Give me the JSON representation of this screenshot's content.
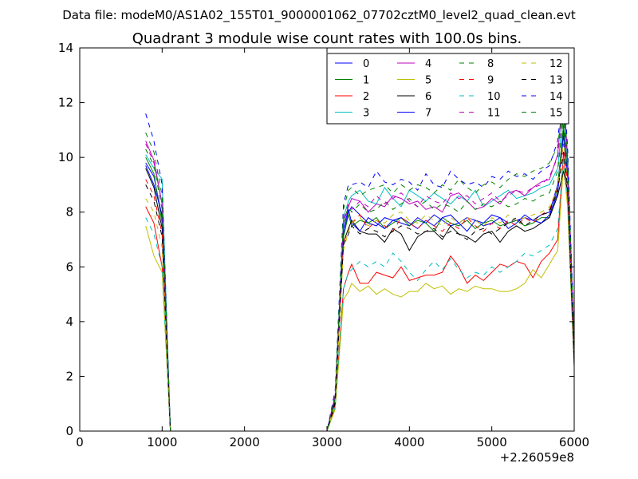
{
  "suptitle": "Data file: modeM0/AS1A02_155T01_9000001062_07702cztM0_level2_quad_clean.evt",
  "chart_data": {
    "type": "line",
    "title": "Quadrant 3 module wise count rates with 100.0s bins.",
    "xlabel": "",
    "ylabel": "",
    "x_offset_label": "+2.26059e8",
    "xlim": [
      0,
      6000
    ],
    "ylim": [
      0,
      14
    ],
    "xticks": [
      0,
      1000,
      2000,
      3000,
      4000,
      5000,
      6000
    ],
    "yticks": [
      0,
      2,
      4,
      6,
      8,
      10,
      12,
      14
    ],
    "grid": false,
    "legend": {
      "position": "top-right",
      "columns": 4
    },
    "x": [
      800,
      900,
      1000,
      1100,
      1200,
      1300,
      1400,
      1500,
      1600,
      1700,
      1800,
      1900,
      2000,
      2100,
      2200,
      2300,
      2400,
      2500,
      2600,
      2700,
      2800,
      2900,
      3000,
      3100,
      3200,
      3260,
      3300,
      3400,
      3500,
      3600,
      3700,
      3800,
      3900,
      4000,
      4100,
      4200,
      4300,
      4400,
      4500,
      4600,
      4700,
      4800,
      4900,
      5000,
      5100,
      5200,
      5300,
      5400,
      5500,
      5600,
      5700,
      5800,
      5870,
      5920,
      6000
    ],
    "series": [
      {
        "name": "0",
        "color": "#0000ff",
        "dash": false,
        "values": [
          9.8,
          9.3,
          7.8,
          0,
          0,
          0,
          0,
          0,
          0,
          0,
          0,
          0,
          0,
          0,
          0,
          0,
          0,
          0,
          0,
          0,
          0,
          0,
          0,
          1.2,
          7.2,
          8.0,
          8.2,
          7.9,
          7.6,
          7.5,
          7.8,
          7.7,
          7.6,
          7.5,
          7.8,
          7.6,
          7.9,
          7.7,
          7.5,
          7.6,
          7.8,
          7.7,
          7.6,
          7.9,
          7.8,
          7.6,
          7.7,
          7.8,
          7.7,
          7.9,
          8.0,
          9.0,
          11.0,
          9.5,
          3.0
        ]
      },
      {
        "name": "1",
        "color": "#008000",
        "dash": false,
        "values": [
          10.0,
          9.4,
          7.6,
          0,
          0,
          0,
          0,
          0,
          0,
          0,
          0,
          0,
          0,
          0,
          0,
          0,
          0,
          0,
          0,
          0,
          0,
          0,
          0,
          1.1,
          7.1,
          7.9,
          7.5,
          7.7,
          7.6,
          7.8,
          7.4,
          7.6,
          7.8,
          7.5,
          7.7,
          7.6,
          7.3,
          7.8,
          7.6,
          7.5,
          7.7,
          7.4,
          7.6,
          7.7,
          7.5,
          7.6,
          7.7,
          7.5,
          7.6,
          7.8,
          7.8,
          8.9,
          11.2,
          9.4,
          2.8
        ]
      },
      {
        "name": "2",
        "color": "#ff0000",
        "dash": false,
        "values": [
          8.2,
          7.6,
          6.0,
          0,
          0,
          0,
          0,
          0,
          0,
          0,
          0,
          0,
          0,
          0,
          0,
          0,
          0,
          0,
          0,
          0,
          0,
          0,
          0,
          0.9,
          5.2,
          5.8,
          6.1,
          5.4,
          5.4,
          5.8,
          5.7,
          5.6,
          6.0,
          5.5,
          5.6,
          5.7,
          5.7,
          5.8,
          6.4,
          6.0,
          5.4,
          5.7,
          5.5,
          5.8,
          6.1,
          6.0,
          6.2,
          6.1,
          5.6,
          6.2,
          6.5,
          7.0,
          10.2,
          8.5,
          2.5
        ]
      },
      {
        "name": "3",
        "color": "#00bfbf",
        "dash": false,
        "values": [
          10.1,
          9.6,
          9.2,
          0,
          0,
          0,
          0,
          0,
          0,
          0,
          0,
          0,
          0,
          0,
          0,
          0,
          0,
          0,
          0,
          0,
          0,
          0,
          0,
          1.3,
          7.8,
          8.4,
          8.6,
          8.8,
          8.4,
          8.3,
          8.9,
          8.5,
          8.2,
          8.8,
          8.6,
          8.4,
          8.7,
          8.5,
          8.3,
          8.6,
          8.4,
          8.8,
          8.2,
          8.4,
          8.6,
          8.8,
          8.5,
          8.6,
          8.7,
          8.9,
          9.0,
          9.6,
          11.8,
          9.8,
          3.1
        ]
      },
      {
        "name": "4",
        "color": "#bf00bf",
        "dash": false,
        "values": [
          10.6,
          9.9,
          8.3,
          0,
          0,
          0,
          0,
          0,
          0,
          0,
          0,
          0,
          0,
          0,
          0,
          0,
          0,
          0,
          0,
          0,
          0,
          0,
          0,
          1.3,
          7.6,
          8.2,
          8.5,
          8.4,
          8.0,
          8.3,
          8.2,
          8.6,
          8.5,
          8.3,
          8.4,
          8.1,
          8.2,
          8.0,
          8.6,
          8.7,
          8.4,
          8.1,
          8.2,
          8.5,
          8.3,
          8.7,
          8.8,
          8.6,
          8.9,
          9.1,
          9.2,
          10.1,
          12.5,
          10.0,
          3.2
        ]
      },
      {
        "name": "5",
        "color": "#bfbf00",
        "dash": false,
        "values": [
          7.5,
          6.4,
          5.8,
          0,
          0,
          0,
          0,
          0,
          0,
          0,
          0,
          0,
          0,
          0,
          0,
          0,
          0,
          0,
          0,
          0,
          0,
          0,
          0,
          0.8,
          4.8,
          5.1,
          5.4,
          5.1,
          5.3,
          5.0,
          5.2,
          5.0,
          4.9,
          5.1,
          5.1,
          5.4,
          5.2,
          5.3,
          5.0,
          5.2,
          5.1,
          5.3,
          5.2,
          5.2,
          5.1,
          5.1,
          5.2,
          5.4,
          5.9,
          5.6,
          6.1,
          6.6,
          9.7,
          8.2,
          2.3
        ]
      },
      {
        "name": "6",
        "color": "#000000",
        "dash": false,
        "values": [
          9.6,
          8.9,
          7.4,
          0,
          0,
          0,
          0,
          0,
          0,
          0,
          0,
          0,
          0,
          0,
          0,
          0,
          0,
          0,
          0,
          0,
          0,
          0,
          0,
          1.1,
          6.9,
          7.4,
          7.7,
          7.3,
          7.2,
          7.2,
          6.9,
          7.4,
          7.2,
          6.6,
          7.1,
          7.3,
          7.3,
          7.0,
          7.5,
          7.2,
          7.1,
          6.9,
          7.2,
          7.3,
          6.9,
          7.3,
          7.5,
          7.3,
          7.4,
          7.6,
          7.8,
          8.6,
          9.5,
          8.8,
          2.4
        ]
      },
      {
        "name": "7",
        "color": "#0000ff",
        "dash": false,
        "values": [
          9.7,
          9.0,
          7.9,
          0,
          0,
          0,
          0,
          0,
          0,
          0,
          0,
          0,
          0,
          0,
          0,
          0,
          0,
          0,
          0,
          0,
          0,
          0,
          0,
          1.2,
          7.4,
          8.1,
          7.6,
          7.3,
          7.8,
          7.6,
          7.4,
          7.7,
          7.8,
          7.6,
          7.4,
          7.7,
          7.5,
          7.8,
          7.9,
          7.6,
          7.3,
          7.7,
          7.5,
          7.6,
          7.8,
          7.4,
          7.6,
          7.9,
          7.7,
          7.6,
          7.9,
          8.7,
          10.8,
          9.3,
          2.6
        ]
      },
      {
        "name": "8",
        "color": "#008000",
        "dash": true,
        "values": [
          10.3,
          9.7,
          8.1,
          0,
          0,
          0,
          0,
          0,
          0,
          0,
          0,
          0,
          0,
          0,
          0,
          0,
          0,
          0,
          0,
          0,
          0,
          0,
          0,
          1.2,
          7.6,
          8.2,
          8.0,
          8.3,
          8.0,
          8.1,
          8.4,
          8.1,
          8.3,
          8.5,
          8.2,
          8.4,
          8.1,
          8.3,
          8.2,
          8.0,
          8.4,
          8.1,
          8.3,
          8.2,
          8.4,
          8.2,
          8.3,
          8.5,
          8.4,
          8.6,
          8.7,
          9.5,
          11.5,
          9.6,
          2.9
        ]
      },
      {
        "name": "9",
        "color": "#ff0000",
        "dash": true,
        "values": [
          9.2,
          8.6,
          7.2,
          0,
          0,
          0,
          0,
          0,
          0,
          0,
          0,
          0,
          0,
          0,
          0,
          0,
          0,
          0,
          0,
          0,
          0,
          0,
          0,
          1.0,
          6.9,
          7.3,
          7.6,
          7.9,
          7.4,
          7.7,
          7.5,
          7.3,
          7.8,
          7.6,
          7.4,
          7.7,
          7.5,
          7.3,
          7.6,
          7.4,
          7.8,
          7.5,
          7.3,
          7.6,
          7.4,
          7.7,
          7.5,
          7.8,
          7.6,
          7.9,
          8.1,
          8.9,
          10.5,
          9.0,
          2.7
        ]
      },
      {
        "name": "10",
        "color": "#00bfbf",
        "dash": true,
        "values": [
          7.8,
          7.2,
          6.0,
          0,
          0,
          0,
          0,
          0,
          0,
          0,
          0,
          0,
          0,
          0,
          0,
          0,
          0,
          0,
          0,
          0,
          0,
          0,
          0,
          0.9,
          5.2,
          5.8,
          5.9,
          6.2,
          6.0,
          6.2,
          6.0,
          6.5,
          6.2,
          5.8,
          5.5,
          5.9,
          6.2,
          5.9,
          6.3,
          5.9,
          5.6,
          5.8,
          5.7,
          6.0,
          5.8,
          6.0,
          6.2,
          6.5,
          6.4,
          6.6,
          6.8,
          7.4,
          10.0,
          8.5,
          2.4
        ]
      },
      {
        "name": "11",
        "color": "#bf00bf",
        "dash": true,
        "values": [
          10.5,
          9.8,
          8.3,
          0,
          0,
          0,
          0,
          0,
          0,
          0,
          0,
          0,
          0,
          0,
          0,
          0,
          0,
          0,
          0,
          0,
          0,
          0,
          0,
          1.3,
          7.7,
          8.3,
          8.1,
          8.4,
          8.2,
          8.6,
          8.3,
          8.5,
          8.7,
          8.4,
          8.2,
          8.6,
          8.4,
          8.3,
          8.7,
          8.5,
          8.6,
          8.3,
          8.5,
          8.7,
          8.4,
          8.6,
          8.8,
          8.7,
          8.9,
          9.0,
          9.3,
          10.0,
          12.0,
          9.9,
          3.0
        ]
      },
      {
        "name": "12",
        "color": "#bfbf00",
        "dash": true,
        "values": [
          8.5,
          8.0,
          6.7,
          0,
          0,
          0,
          0,
          0,
          0,
          0,
          0,
          0,
          0,
          0,
          0,
          0,
          0,
          0,
          0,
          0,
          0,
          0,
          0,
          1.0,
          6.6,
          7.3,
          7.6,
          7.8,
          7.5,
          7.7,
          7.6,
          7.9,
          8.0,
          7.7,
          7.6,
          7.9,
          7.7,
          7.5,
          7.8,
          7.6,
          7.8,
          7.7,
          7.5,
          7.8,
          7.6,
          7.9,
          7.7,
          7.8,
          7.9,
          8.0,
          8.2,
          8.9,
          10.6,
          9.1,
          2.6
        ]
      },
      {
        "name": "13",
        "color": "#000000",
        "dash": true,
        "values": [
          9.0,
          8.4,
          7.1,
          0,
          0,
          0,
          0,
          0,
          0,
          0,
          0,
          0,
          0,
          0,
          0,
          0,
          0,
          0,
          0,
          0,
          0,
          0,
          0,
          1.0,
          6.8,
          7.2,
          7.5,
          7.2,
          7.4,
          7.3,
          7.1,
          7.3,
          7.5,
          7.4,
          7.2,
          7.3,
          7.4,
          7.1,
          7.3,
          7.2,
          7.0,
          7.3,
          7.4,
          7.2,
          7.4,
          7.6,
          7.8,
          7.5,
          7.7,
          7.9,
          8.0,
          8.8,
          10.2,
          8.9,
          2.5
        ]
      },
      {
        "name": "14",
        "color": "#0000ff",
        "dash": true,
        "values": [
          11.6,
          10.6,
          9.0,
          0,
          0,
          0,
          0,
          0,
          0,
          0,
          0,
          0,
          0,
          0,
          0,
          0,
          0,
          0,
          0,
          0,
          0,
          0,
          0,
          1.5,
          8.3,
          9.0,
          9.0,
          9.1,
          8.9,
          9.5,
          9.1,
          9.0,
          9.2,
          9.1,
          8.8,
          9.4,
          9.0,
          8.9,
          9.5,
          9.2,
          9.0,
          9.1,
          8.9,
          9.3,
          9.2,
          9.5,
          9.3,
          9.4,
          9.2,
          9.5,
          9.7,
          10.6,
          12.7,
          10.4,
          3.3
        ]
      },
      {
        "name": "15",
        "color": "#008000",
        "dash": true,
        "values": [
          10.9,
          10.2,
          8.6,
          0,
          0,
          0,
          0,
          0,
          0,
          0,
          0,
          0,
          0,
          0,
          0,
          0,
          0,
          0,
          0,
          0,
          0,
          0,
          0,
          1.4,
          8.1,
          8.8,
          8.9,
          8.6,
          8.8,
          8.9,
          9.0,
          8.7,
          9.0,
          8.8,
          9.0,
          8.9,
          8.7,
          9.0,
          8.8,
          9.2,
          8.9,
          8.7,
          9.0,
          9.1,
          8.9,
          9.2,
          9.4,
          9.3,
          9.5,
          9.6,
          9.8,
          10.4,
          12.2,
          10.1,
          3.1
        ]
      }
    ]
  }
}
